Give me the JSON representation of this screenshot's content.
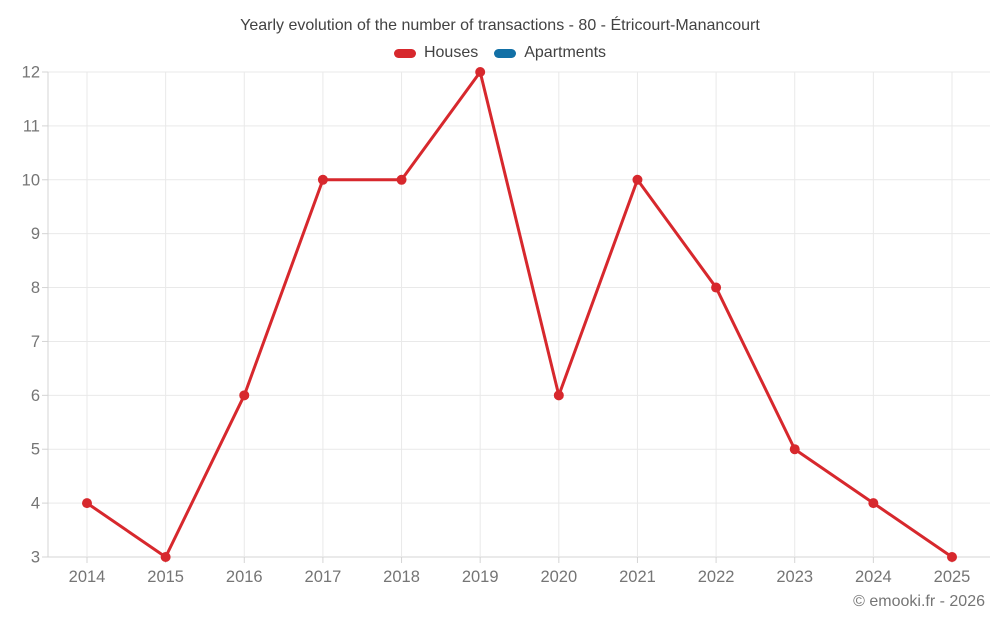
{
  "title": "Yearly evolution of the number of transactions - 80 - Étricourt-Manancourt",
  "footer": "© emooki.fr - 2026",
  "colors": {
    "houses": "#d7282d",
    "apartments": "#1270a6",
    "grid": "#e9e9e9",
    "axis": "#d4d4d4",
    "title_text": "#424242",
    "axis_text": "#757575"
  },
  "chart_data": {
    "type": "line",
    "title": "Yearly evolution of the number of transactions - 80 - Étricourt-Manancourt",
    "categories": [
      "2014",
      "2015",
      "2016",
      "2017",
      "2018",
      "2019",
      "2020",
      "2021",
      "2022",
      "2023",
      "2024",
      "2025"
    ],
    "series": [
      {
        "name": "Houses",
        "color": "#d7282d",
        "values": [
          4,
          3,
          6,
          10,
          10,
          12,
          6,
          10,
          8,
          5,
          4,
          3
        ]
      },
      {
        "name": "Apartments",
        "color": "#1270a6",
        "values": []
      }
    ],
    "xlabel": "",
    "ylabel": "",
    "ylim": [
      3,
      12
    ],
    "yticks": [
      3,
      4,
      5,
      6,
      7,
      8,
      9,
      10,
      11,
      12
    ],
    "grid": true,
    "legend_position": "top",
    "marker_radius": 5,
    "line_width": 3
  }
}
